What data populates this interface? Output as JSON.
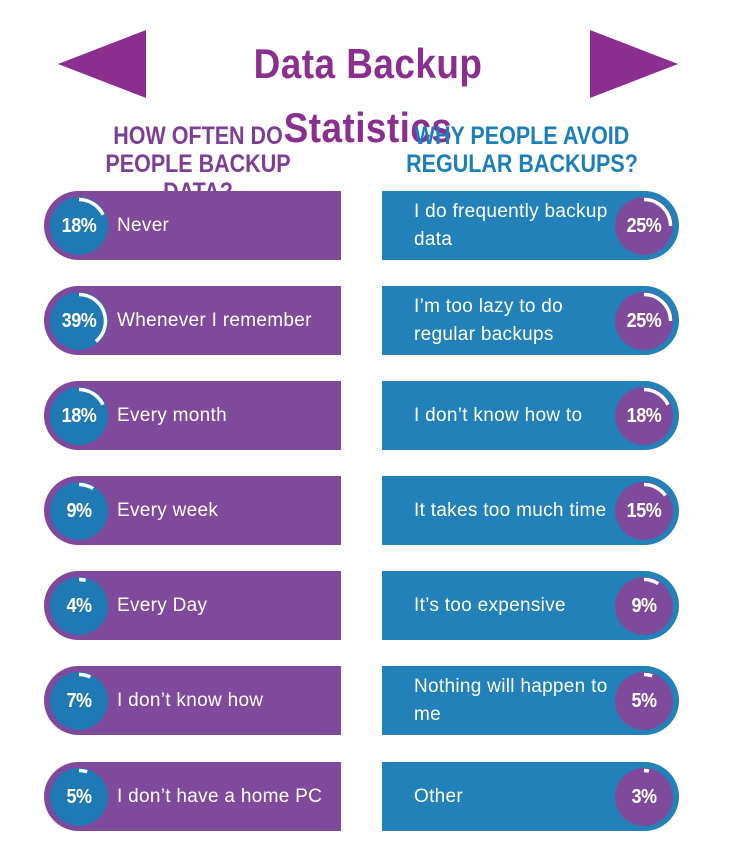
{
  "title": "Data Backup Statistics",
  "colors": {
    "purple": "#7f4a9b",
    "blue": "#2381ba",
    "title": "#8b2e8f"
  },
  "left_heading": "HOW OFTEN DO PEOPLE BACKUP DATA?",
  "right_heading": "WHY PEOPLE AVOID REGULAR BACKUPS?",
  "left_items": [
    {
      "pct": "18%",
      "value": 18,
      "label": "Never"
    },
    {
      "pct": "39%",
      "value": 39,
      "label": "Whenever I remember"
    },
    {
      "pct": "18%",
      "value": 18,
      "label": "Every month"
    },
    {
      "pct": "9%",
      "value": 9,
      "label": "Every week"
    },
    {
      "pct": "4%",
      "value": 4,
      "label": "Every Day"
    },
    {
      "pct": "7%",
      "value": 7,
      "label": "I don’t know how"
    },
    {
      "pct": "5%",
      "value": 5,
      "label": "I don’t have a home PC"
    }
  ],
  "right_items": [
    {
      "pct": "25%",
      "value": 25,
      "label": "I do frequently backup data"
    },
    {
      "pct": "25%",
      "value": 25,
      "label": "I’m too lazy to do regular backups"
    },
    {
      "pct": "18%",
      "value": 18,
      "label": "I don’t know how to"
    },
    {
      "pct": "15%",
      "value": 15,
      "label": "It takes too much time"
    },
    {
      "pct": "9%",
      "value": 9,
      "label": "It’s too expensive"
    },
    {
      "pct": "5%",
      "value": 5,
      "label": "Nothing will happen to me"
    },
    {
      "pct": "3%",
      "value": 3,
      "label": "Other"
    }
  ]
}
